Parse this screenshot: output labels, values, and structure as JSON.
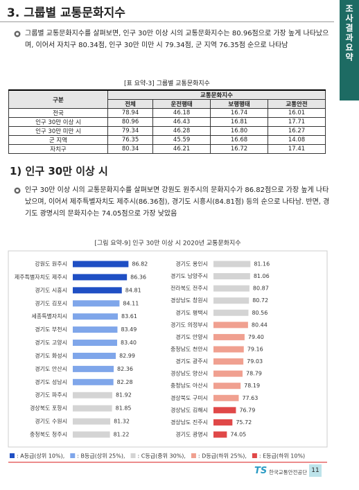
{
  "header": {
    "title": "3. 그룹별 교통문화지수",
    "side_tab": "조사결과요약"
  },
  "paragraphs": [
    "그룹별 교통문화지수를 살펴보면, 인구 30만 이상 시의 교통문화지수는 80.96점으로 가장 높게 나타났으며, 이어서 자치구 80.34점, 인구 30만 미만 시 79.34점, 군 지역 76.35점 순으로 나타남",
    "인구 30만 이상 시의 교통문화지수를 살펴보면 강원도 원주시의 문화지수가 86.82점으로 가장 높게 나타났으며, 이어서 제주특별자치도 제주시(86.36점), 경기도 시흥시(84.81점) 등의 순으로 나타남. 반면, 경기도 광명시의 문화지수는 74.05점으로 가장 낮았음"
  ],
  "table": {
    "caption": "[표 요약-3] 그룹별 교통문화지수",
    "row_header": "구분",
    "group_header": "교통문화지수",
    "columns": [
      "전체",
      "운전행태",
      "보행행태",
      "교통안전"
    ],
    "rows": [
      [
        "전국",
        "78.94",
        "46.18",
        "16.74",
        "16.01"
      ],
      [
        "인구 30만 이상 시",
        "80.96",
        "46.43",
        "16.81",
        "17.71"
      ],
      [
        "인구 30만 미만 시",
        "79.34",
        "46.28",
        "16.80",
        "16.27"
      ],
      [
        "군 지역",
        "76.35",
        "45.59",
        "16.68",
        "14.08"
      ],
      [
        "자치구",
        "80.34",
        "46.21",
        "16.72",
        "17.41"
      ]
    ]
  },
  "section": "1) 인구 30만 이상 시",
  "chart_data": {
    "type": "bar",
    "title": "[그림 요약-9] 인구 30만 이상 시 2020년 교통문화지수",
    "xlim": [
      70,
      88
    ],
    "panels": [
      {
        "categories": [
          "강원도 원주시",
          "제주특별자치도 제주시",
          "경기도 시흥시",
          "경기도 김포시",
          "세종특별자치시",
          "경기도 부천시",
          "경기도 고양시",
          "경기도 화성시",
          "경기도 안산시",
          "경기도 성남시",
          "경기도 파주시",
          "경상북도 포항시",
          "경기도 수원시",
          "충청북도 청주시"
        ],
        "values": [
          86.82,
          86.36,
          84.81,
          84.11,
          83.61,
          83.49,
          83.4,
          82.99,
          82.36,
          82.28,
          81.92,
          81.85,
          81.32,
          81.22
        ],
        "value_labels": [
          "86.82",
          "86.36",
          "84.81",
          "84.11",
          "83.61",
          "83.49",
          "83.40",
          "82.99",
          "82.36",
          "82.28",
          "81.92",
          "81.85",
          "81.32",
          "81.22"
        ],
        "colors": [
          "#1f4fc4",
          "#1f4fc4",
          "#1f4fc4",
          "#7fa6ea",
          "#7fa6ea",
          "#7fa6ea",
          "#7fa6ea",
          "#7fa6ea",
          "#7fa6ea",
          "#7fa6ea",
          "#d4d4d4",
          "#d4d4d4",
          "#d4d4d4",
          "#d4d4d4"
        ]
      },
      {
        "categories": [
          "경기도 용인시",
          "경기도 남양주시",
          "전라북도 전주시",
          "경상남도 창원시",
          "경기도 평택시",
          "경기도 의정부시",
          "경기도 안양시",
          "충청남도 천안시",
          "경기도 광주시",
          "경상남도 양산시",
          "충청남도 아산시",
          "경상북도 구미시",
          "경상남도 김해시",
          "경상남도 진주시",
          "경기도 광명시"
        ],
        "values": [
          81.16,
          81.06,
          80.87,
          80.72,
          80.56,
          80.44,
          79.4,
          79.16,
          79.03,
          78.79,
          78.19,
          77.63,
          76.79,
          75.72,
          74.05
        ],
        "value_labels": [
          "81.16",
          "81.06",
          "80.87",
          "80.72",
          "80.56",
          "80.44",
          "79.40",
          "79.16",
          "79.03",
          "78.79",
          "78.19",
          "77.63",
          "76.79",
          "75.72",
          "74.05"
        ],
        "colors": [
          "#d4d4d4",
          "#d4d4d4",
          "#d4d4d4",
          "#d4d4d4",
          "#d4d4d4",
          "#f0a090",
          "#f0a090",
          "#f0a090",
          "#f0a090",
          "#f0a090",
          "#f0a090",
          "#f0a090",
          "#e04848",
          "#e04848",
          "#e04848"
        ]
      }
    ],
    "legend": [
      {
        "label": ": A등급(상위 10%),",
        "color": "#1f4fc4"
      },
      {
        "label": ": B등급(상위 25%),",
        "color": "#7fa6ea"
      },
      {
        "label": ": C등급(중위 30%),",
        "color": "#d4d4d4"
      },
      {
        "label": ": D등급(하위 25%),",
        "color": "#f0a090"
      },
      {
        "label": ": E등급(하위 10%)",
        "color": "#e04848"
      }
    ]
  },
  "footer": {
    "logo": "TS",
    "org": "한국교통안전공단",
    "page": "11"
  }
}
